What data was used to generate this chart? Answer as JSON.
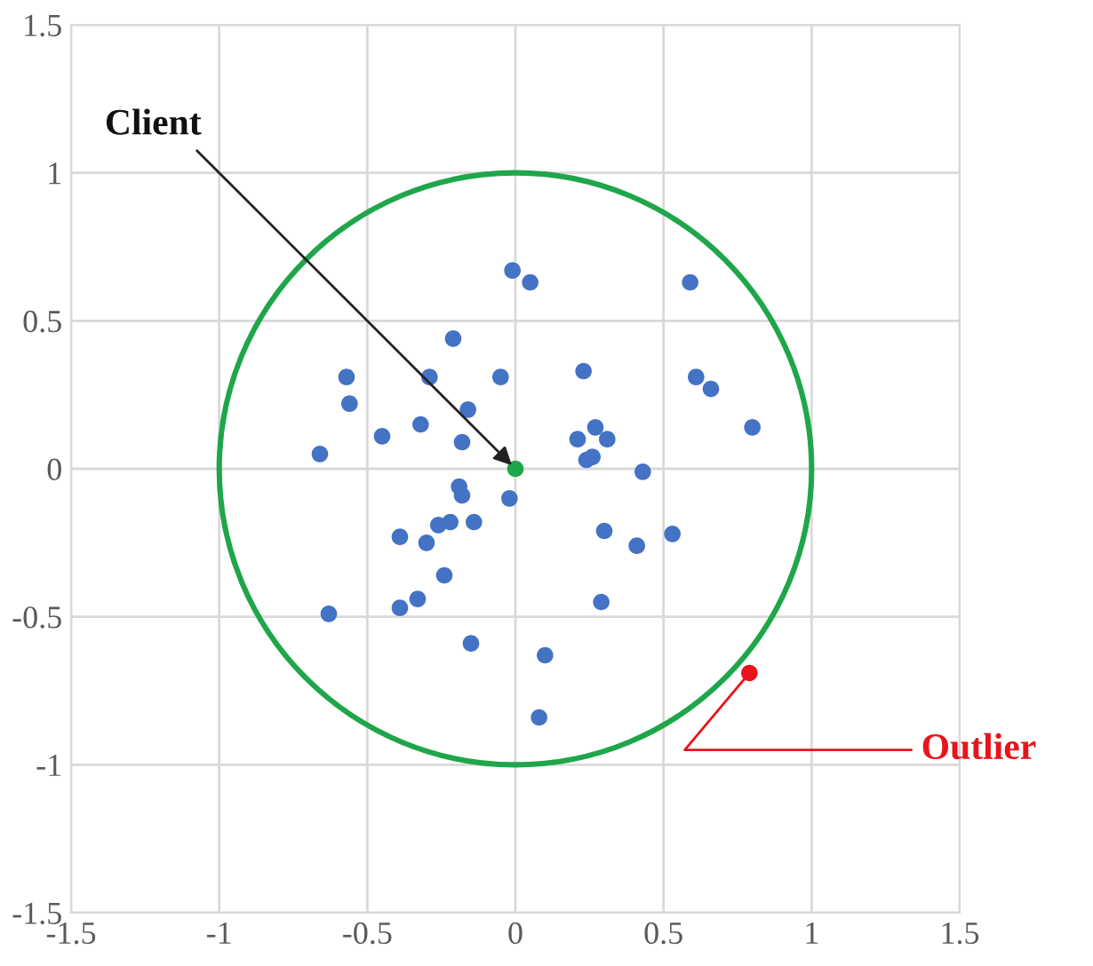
{
  "chart_data": {
    "type": "scatter",
    "xlim": [
      -1.5,
      1.5
    ],
    "ylim": [
      -1.5,
      1.5
    ],
    "xticks": [
      -1.5,
      -1,
      -0.5,
      0,
      0.5,
      1,
      1.5
    ],
    "yticks": [
      -1.5,
      -1,
      -0.5,
      0,
      0.5,
      1,
      1.5
    ],
    "grid": true,
    "marker": "circle",
    "series": [
      {
        "color": "#4472c4",
        "x": [
          -0.01,
          0.05,
          -0.21,
          -0.57,
          -0.56,
          -0.29,
          -0.05,
          -0.16,
          -0.32,
          -0.45,
          -0.18,
          -0.66,
          -0.19,
          -0.18,
          -0.02,
          -0.39,
          -0.3,
          -0.26,
          -0.22,
          -0.14,
          -0.24,
          -0.33,
          -0.39,
          -0.63,
          -0.15,
          0.59,
          0.23,
          0.61,
          0.66,
          0.8,
          0.27,
          0.21,
          0.31,
          0.26,
          0.24,
          0.43,
          0.3,
          0.41,
          0.53,
          0.29,
          0.1,
          0.08
        ],
        "values": [
          0.67,
          0.63,
          0.44,
          0.31,
          0.22,
          0.31,
          0.31,
          0.2,
          0.15,
          0.11,
          0.09,
          0.05,
          -0.06,
          -0.09,
          -0.1,
          -0.23,
          -0.25,
          -0.19,
          -0.18,
          -0.18,
          -0.36,
          -0.44,
          -0.47,
          -0.49,
          -0.59,
          0.63,
          0.33,
          0.31,
          0.27,
          0.14,
          0.14,
          0.1,
          0.1,
          0.04,
          0.03,
          -0.01,
          -0.21,
          -0.26,
          -0.22,
          -0.45,
          -0.63,
          -0.84
        ]
      },
      {
        "color": "#1fa64a",
        "x": [
          0
        ],
        "values": [
          0
        ]
      },
      {
        "color": "#e8141c",
        "x": [
          0.79
        ],
        "values": [
          -0.69
        ]
      }
    ],
    "annotations": [
      {
        "text": "Client",
        "x": 0,
        "y": 0
      },
      {
        "text": "Outlier",
        "x": 0.79,
        "y": -0.69
      }
    ]
  }
}
